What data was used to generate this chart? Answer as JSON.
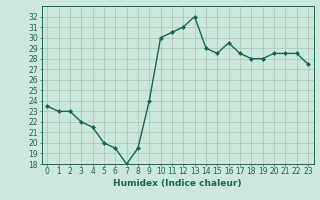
{
  "x": [
    0,
    1,
    2,
    3,
    4,
    5,
    6,
    7,
    8,
    9,
    10,
    11,
    12,
    13,
    14,
    15,
    16,
    17,
    18,
    19,
    20,
    21,
    22,
    23
  ],
  "y": [
    23.5,
    23.0,
    23.0,
    22.0,
    21.5,
    20.0,
    19.5,
    18.0,
    19.5,
    24.0,
    30.0,
    30.5,
    31.0,
    32.0,
    29.0,
    28.5,
    29.5,
    28.5,
    28.0,
    28.0,
    28.5,
    28.5,
    28.5,
    27.5
  ],
  "line_color": "#1a6655",
  "marker": "D",
  "marker_size": 2.0,
  "bg_color": "#cce8dc",
  "grid_color": "#a0c8b0",
  "xlabel": "Humidex (Indice chaleur)",
  "ylim": [
    18,
    33
  ],
  "xlim": [
    -0.5,
    23.5
  ],
  "yticks": [
    18,
    19,
    20,
    21,
    22,
    23,
    24,
    25,
    26,
    27,
    28,
    29,
    30,
    31,
    32
  ],
  "xticks": [
    0,
    1,
    2,
    3,
    4,
    5,
    6,
    7,
    8,
    9,
    10,
    11,
    12,
    13,
    14,
    15,
    16,
    17,
    18,
    19,
    20,
    21,
    22,
    23
  ],
  "xtick_labels": [
    "0",
    "1",
    "2",
    "3",
    "4",
    "5",
    "6",
    "7",
    "8",
    "9",
    "10",
    "11",
    "12",
    "13",
    "14",
    "15",
    "16",
    "17",
    "18",
    "19",
    "20",
    "21",
    "22",
    "23"
  ],
  "axis_color": "#1a6655",
  "tick_color": "#1a6655",
  "label_fontsize": 6.5,
  "tick_fontsize": 5.5,
  "linewidth": 1.0
}
